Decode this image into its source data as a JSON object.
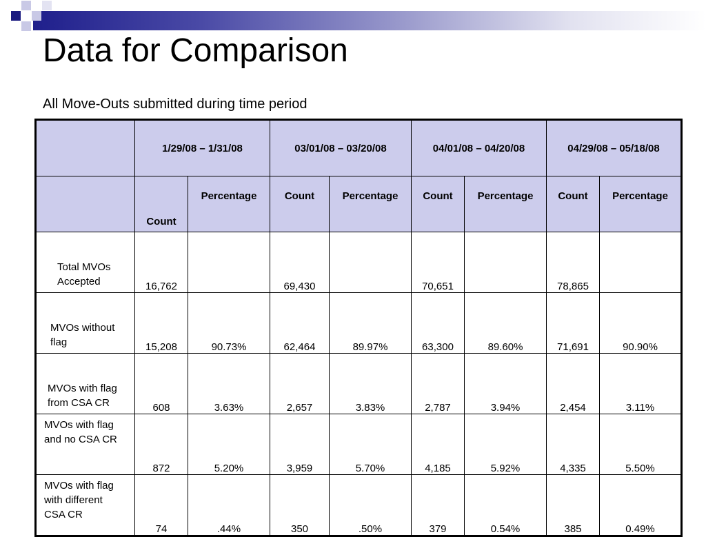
{
  "slide": {
    "title": "Data for Comparison",
    "subtitle": "All Move-Outs submitted during time period"
  },
  "table": {
    "periods": [
      "1/29/08 – 1/31/08",
      "03/01/08 – 03/20/08",
      "04/01/08 – 04/20/08",
      "04/29/08 – 05/18/08"
    ],
    "subheaders": {
      "count": "Count",
      "percentage": "Percentage"
    },
    "rows": [
      {
        "label": "Total MVOs Accepted",
        "cells": [
          "16,762",
          "",
          "69,430",
          "",
          "70,651",
          "",
          "78,865",
          ""
        ]
      },
      {
        "label": "MVOs without flag",
        "cells": [
          "15,208",
          "90.73%",
          "62,464",
          "89.97%",
          "63,300",
          "89.60%",
          "71,691",
          "90.90%"
        ]
      },
      {
        "label": "MVOs with flag from CSA CR",
        "cells": [
          "608",
          "3.63%",
          "2,657",
          "3.83%",
          "2,787",
          "3.94%",
          "2,454",
          "3.11%"
        ]
      },
      {
        "label": "MVOs with flag and no CSA CR",
        "cells": [
          "872",
          "5.20%",
          "3,959",
          "5.70%",
          "4,185",
          "5.92%",
          "4,335",
          "5.50%"
        ]
      },
      {
        "label": "MVOs with flag with different CSA CR",
        "cells": [
          "74",
          ".44%",
          "350",
          ".50%",
          "379",
          "0.54%",
          "385",
          "0.49%"
        ]
      }
    ]
  },
  "colors": {
    "header_fill": "#ccccec",
    "band_dark": "#1f1f8c"
  }
}
